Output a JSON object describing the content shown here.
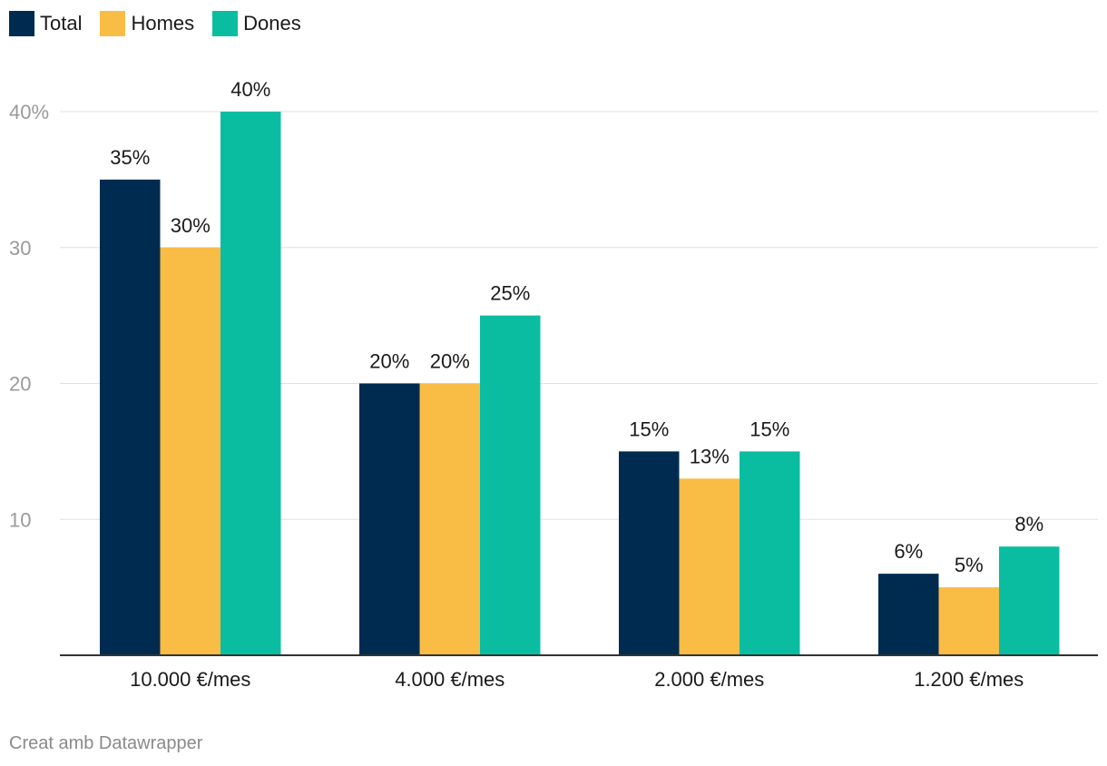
{
  "chart_data": {
    "type": "bar",
    "categories": [
      "10.000 €/mes",
      "4.000 €/mes",
      "2.000 €/mes",
      "1.200 €/mes"
    ],
    "series": [
      {
        "name": "Total",
        "color": "#002b50",
        "values": [
          35,
          20,
          15,
          6
        ],
        "labels": [
          "35%",
          "20%",
          "15%",
          "6%"
        ]
      },
      {
        "name": "Homes",
        "color": "#f9bc45",
        "values": [
          30,
          20,
          13,
          5
        ],
        "labels": [
          "30%",
          "20%",
          "13%",
          "5%"
        ]
      },
      {
        "name": "Dones",
        "color": "#0abda0",
        "values": [
          40,
          25,
          15,
          8
        ],
        "labels": [
          "40%",
          "25%",
          "15%",
          "8%"
        ]
      }
    ],
    "yticks": [
      {
        "value": 10,
        "label": "10"
      },
      {
        "value": 20,
        "label": "20"
      },
      {
        "value": 30,
        "label": "30"
      },
      {
        "value": 40,
        "label": "40%"
      }
    ],
    "ylim": [
      0,
      40
    ],
    "grid": true,
    "legend_position": "top-left"
  },
  "footer": {
    "credit": "Creat amb Datawrapper"
  }
}
